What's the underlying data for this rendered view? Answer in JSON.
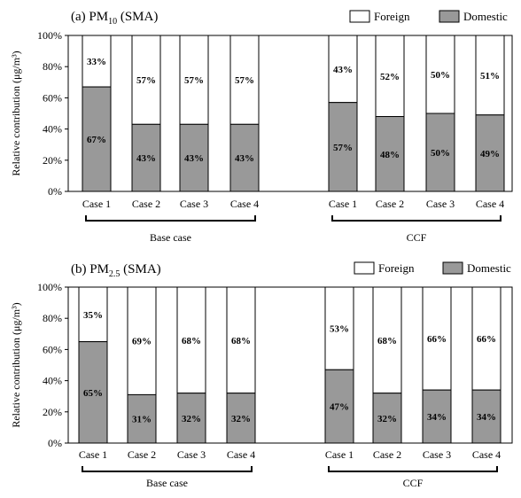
{
  "colors": {
    "foreign": "#ffffff",
    "domestic": "#999999",
    "stroke": "#000000"
  },
  "chart_data": [
    {
      "type": "bar",
      "stacked": true,
      "title": "(a) PM10 (SMA)",
      "title_prefix": "(a) PM",
      "title_sub": "10",
      "title_suffix": " (SMA)",
      "ylabel": "Relative contribution (μg/m³)",
      "ylim": [
        0,
        100
      ],
      "yticks": [
        "0%",
        "20%",
        "40%",
        "60%",
        "80%",
        "100%"
      ],
      "legend": [
        "Foreign",
        "Domestic"
      ],
      "legend_position": "top-right",
      "categories": [
        "Case 1",
        "Case 2",
        "Case 3",
        "Case 4",
        "Case 1",
        "Case 2",
        "Case 3",
        "Case 4"
      ],
      "groups": [
        {
          "label": "Base case",
          "categories": [
            "Case 1",
            "Case 2",
            "Case 3",
            "Case 4"
          ]
        },
        {
          "label": "CCF",
          "categories": [
            "Case 1",
            "Case 2",
            "Case 3",
            "Case 4"
          ]
        }
      ],
      "series": [
        {
          "name": "Domestic",
          "values": [
            67,
            43,
            43,
            43,
            57,
            48,
            50,
            49
          ],
          "labels": [
            "67%",
            "43%",
            "43%",
            "43%",
            "57%",
            "48%",
            "50%",
            "49%"
          ]
        },
        {
          "name": "Foreign",
          "values": [
            33,
            57,
            57,
            57,
            43,
            52,
            50,
            51
          ],
          "labels": [
            "33%",
            "57%",
            "57%",
            "57%",
            "43%",
            "52%",
            "50%",
            "51%"
          ]
        }
      ]
    },
    {
      "type": "bar",
      "stacked": true,
      "title": "(b) PM2.5 (SMA)",
      "title_prefix": "(b) PM",
      "title_sub": "2.5",
      "title_suffix": " (SMA)",
      "ylabel": "Relative contribution (μg/m³)",
      "ylim": [
        0,
        100
      ],
      "yticks": [
        "0%",
        "20%",
        "40%",
        "60%",
        "80%",
        "100%"
      ],
      "legend": [
        "Foreign",
        "Domestic"
      ],
      "legend_position": "top-right",
      "categories": [
        "Case 1",
        "Case 2",
        "Case 3",
        "Case 4",
        "Case 1",
        "Case 2",
        "Case 3",
        "Case 4"
      ],
      "groups": [
        {
          "label": "Base case",
          "categories": [
            "Case 1",
            "Case 2",
            "Case 3",
            "Case 4"
          ]
        },
        {
          "label": "CCF",
          "categories": [
            "Case 1",
            "Case 2",
            "Case 3",
            "Case 4"
          ]
        }
      ],
      "series": [
        {
          "name": "Domestic",
          "values": [
            65,
            31,
            32,
            32,
            47,
            32,
            34,
            34
          ],
          "labels": [
            "65%",
            "31%",
            "32%",
            "32%",
            "47%",
            "32%",
            "34%",
            "34%"
          ]
        },
        {
          "name": "Foreign",
          "values": [
            35,
            69,
            68,
            68,
            53,
            68,
            66,
            66
          ],
          "labels": [
            "35%",
            "69%",
            "68%",
            "68%",
            "53%",
            "68%",
            "66%",
            "66%"
          ]
        }
      ]
    }
  ]
}
